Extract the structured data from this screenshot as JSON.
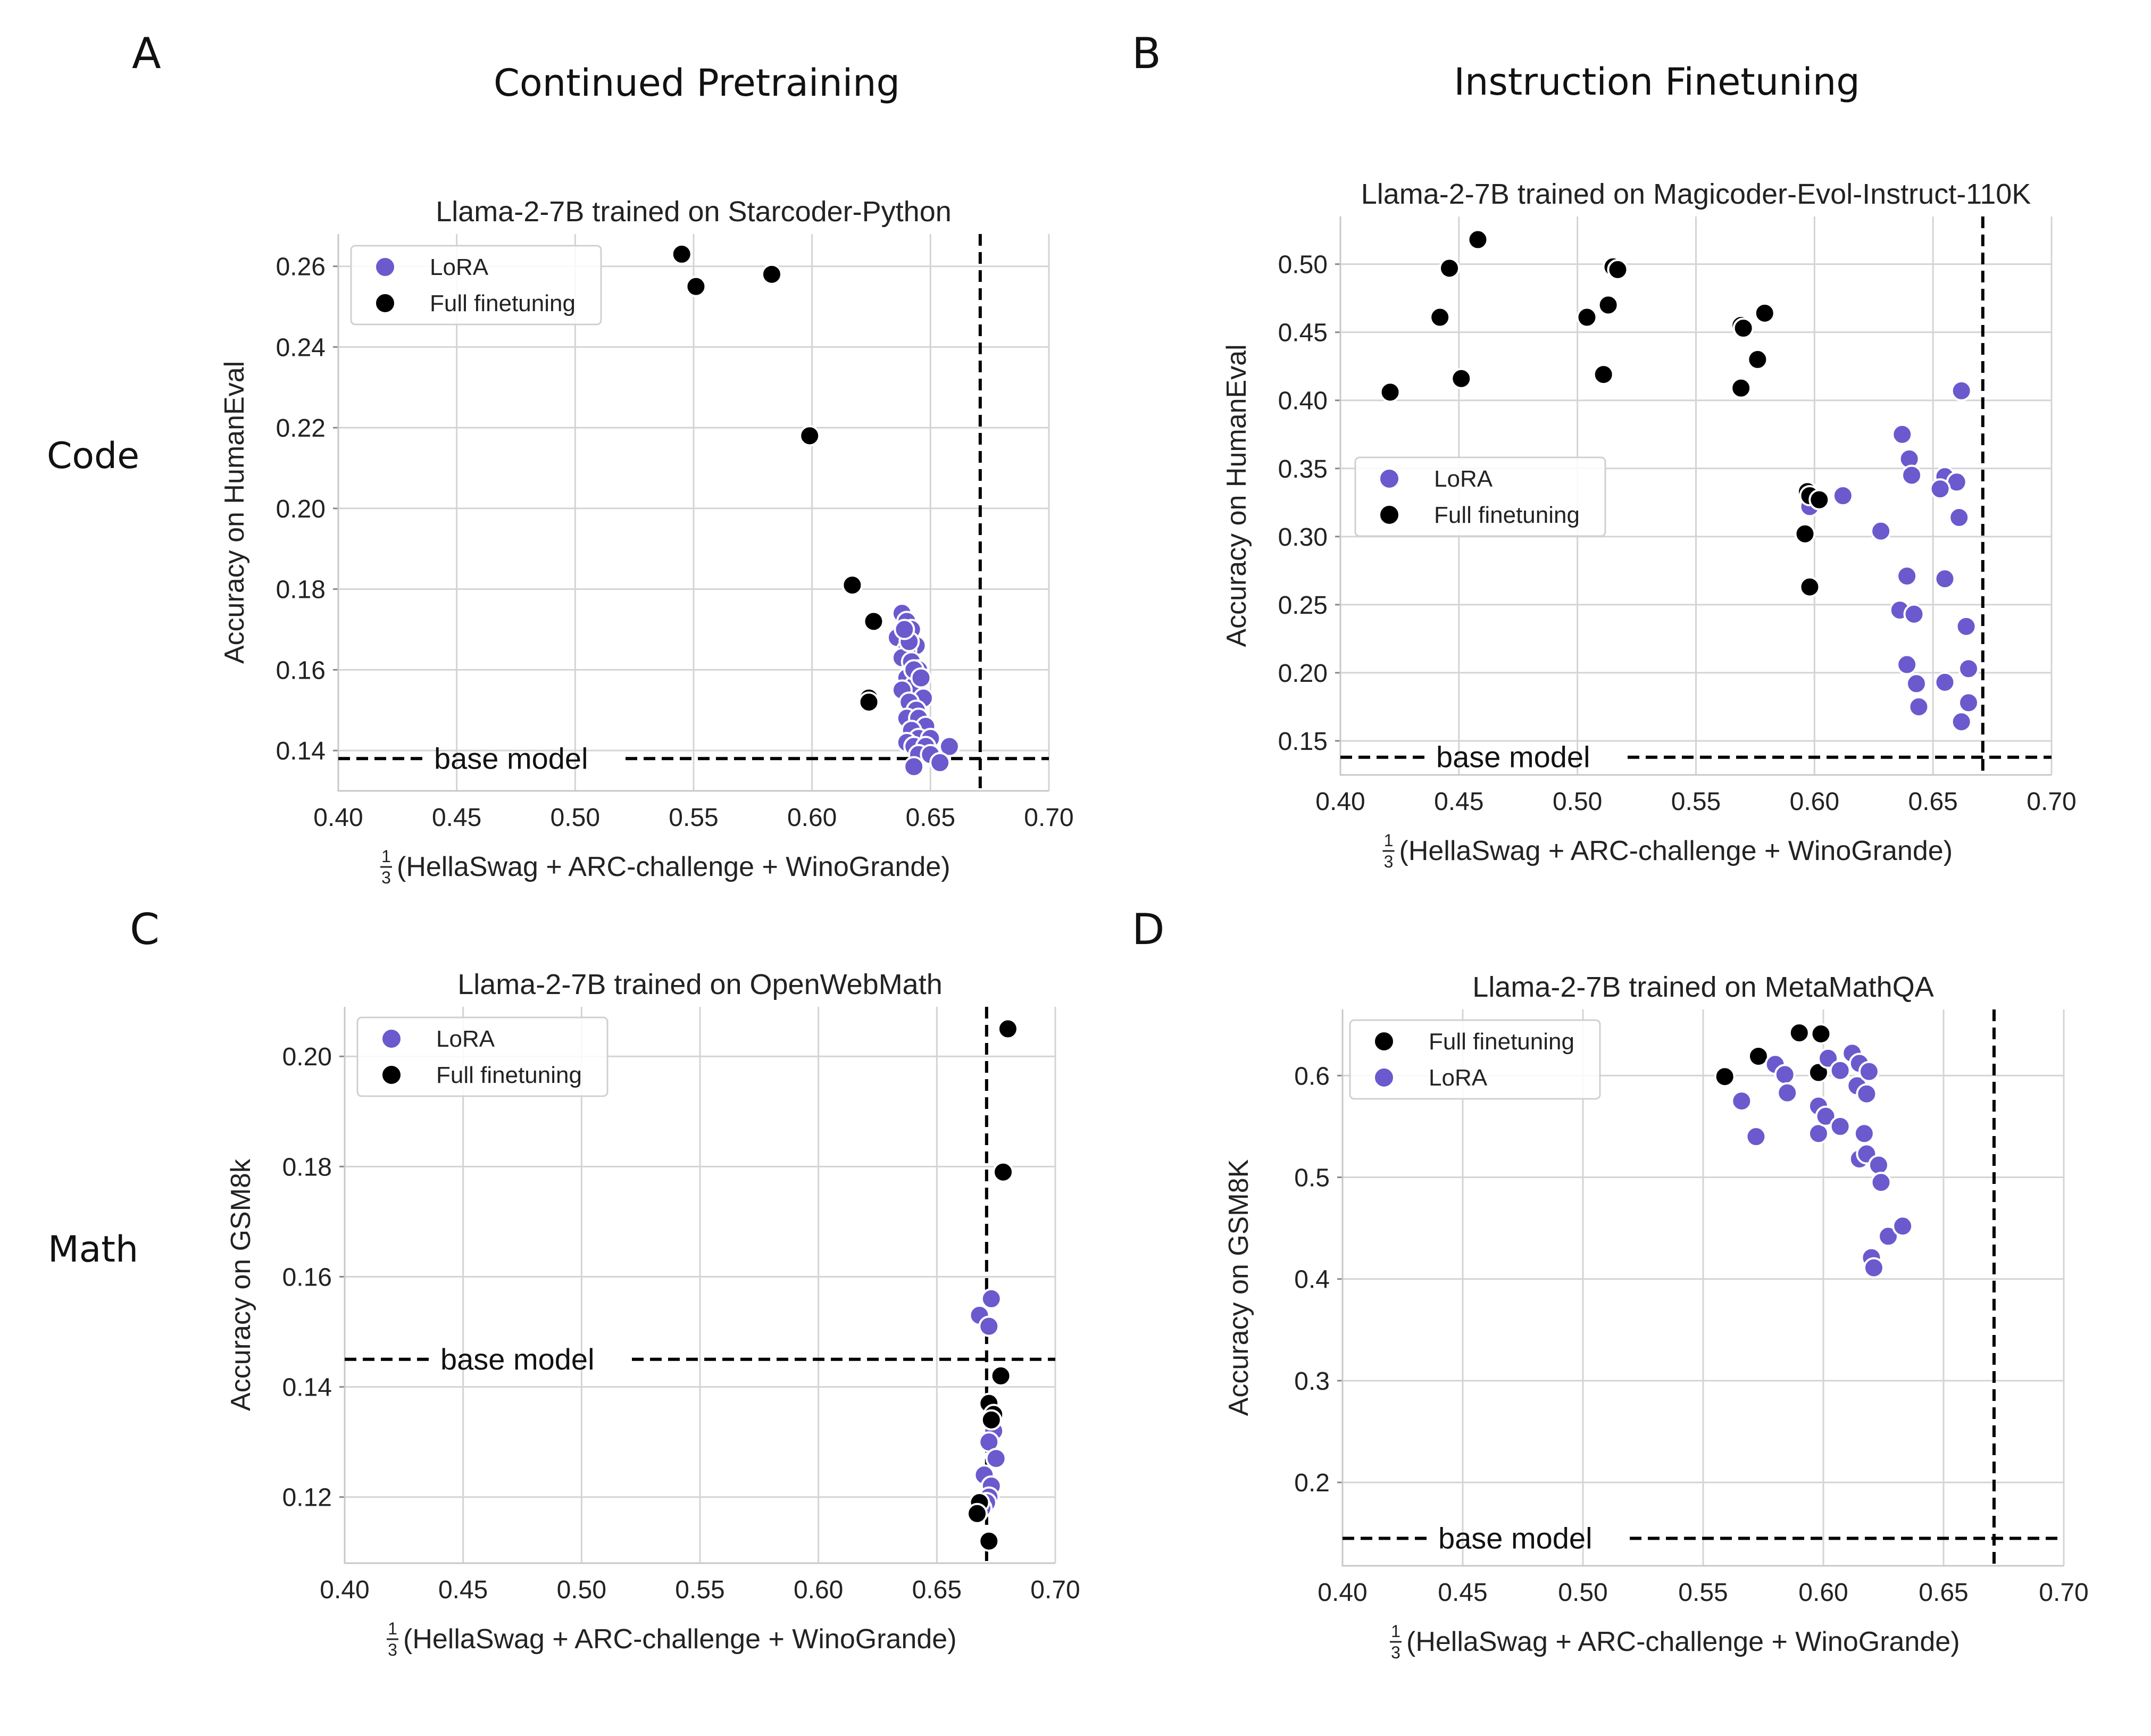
{
  "figure": {
    "panels": [
      "A",
      "B",
      "C",
      "D"
    ],
    "column_titles": [
      "Continued Pretraining",
      "Instruction Finetuning"
    ],
    "row_labels": [
      "Code",
      "Math"
    ]
  },
  "colors": {
    "lora": "#6a5acd",
    "full": "#000000"
  },
  "chart_data": [
    {
      "type": "scatter",
      "title": "Llama-2-7B trained on Starcoder-Python",
      "xlabel_frac": "1/3",
      "xlabel": "(HellaSwag + ARC-challenge + WinoGrande)",
      "ylabel": "Accuracy on HumanEval",
      "xlim": [
        0.4,
        0.7
      ],
      "ylim": [
        0.13,
        0.268
      ],
      "xticks": [
        "0.40",
        "0.45",
        "0.50",
        "0.55",
        "0.60",
        "0.65",
        "0.70"
      ],
      "yticks": [
        "0.14",
        "0.16",
        "0.18",
        "0.20",
        "0.22",
        "0.24",
        "0.26"
      ],
      "grid": true,
      "legend_position": "top-left",
      "legend": [
        "LoRA",
        "Full finetuning"
      ],
      "reference_lines": {
        "baseline_y": 0.138,
        "baseline_label": "base model",
        "vertical_x": 0.671
      },
      "series": [
        {
          "name": "LoRA",
          "color": "#6a5acd",
          "points": [
            [
              0.638,
              0.174
            ],
            [
              0.64,
              0.172
            ],
            [
              0.642,
              0.17
            ],
            [
              0.636,
              0.168
            ],
            [
              0.644,
              0.166
            ],
            [
              0.64,
              0.165
            ],
            [
              0.638,
              0.163
            ],
            [
              0.642,
              0.162
            ],
            [
              0.645,
              0.16
            ],
            [
              0.64,
              0.158
            ],
            [
              0.643,
              0.156
            ],
            [
              0.638,
              0.155
            ],
            [
              0.647,
              0.153
            ],
            [
              0.641,
              0.152
            ],
            [
              0.644,
              0.15
            ],
            [
              0.64,
              0.148
            ],
            [
              0.645,
              0.148
            ],
            [
              0.648,
              0.146
            ],
            [
              0.642,
              0.145
            ],
            [
              0.645,
              0.143
            ],
            [
              0.65,
              0.143
            ],
            [
              0.64,
              0.142
            ],
            [
              0.643,
              0.141
            ],
            [
              0.648,
              0.141
            ],
            [
              0.658,
              0.141
            ],
            [
              0.645,
              0.139
            ],
            [
              0.65,
              0.139
            ],
            [
              0.654,
              0.137
            ],
            [
              0.643,
              0.136
            ],
            [
              0.641,
              0.167
            ],
            [
              0.639,
              0.17
            ],
            [
              0.643,
              0.16
            ],
            [
              0.646,
              0.158
            ]
          ]
        },
        {
          "name": "Full finetuning",
          "color": "#000000",
          "points": [
            [
              0.545,
              0.263
            ],
            [
              0.551,
              0.255
            ],
            [
              0.583,
              0.258
            ],
            [
              0.599,
              0.218
            ],
            [
              0.617,
              0.181
            ],
            [
              0.626,
              0.172
            ],
            [
              0.624,
              0.153
            ],
            [
              0.624,
              0.152
            ]
          ]
        }
      ]
    },
    {
      "type": "scatter",
      "title": "Llama-2-7B trained on Magicoder-Evol-Instruct-110K",
      "xlabel_frac": "1/3",
      "xlabel": "(HellaSwag + ARC-challenge + WinoGrande)",
      "ylabel": "Accuracy on HumanEval",
      "xlim": [
        0.4,
        0.7
      ],
      "ylim": [
        0.125,
        0.535
      ],
      "xticks": [
        "0.40",
        "0.45",
        "0.50",
        "0.55",
        "0.60",
        "0.65",
        "0.70"
      ],
      "yticks": [
        "0.15",
        "0.20",
        "0.25",
        "0.30",
        "0.35",
        "0.40",
        "0.45",
        "0.50"
      ],
      "grid": true,
      "legend_position": "center-left",
      "legend": [
        "LoRA",
        "Full finetuning"
      ],
      "reference_lines": {
        "baseline_y": 0.138,
        "baseline_label": "base model",
        "vertical_x": 0.671
      },
      "series": [
        {
          "name": "LoRA",
          "color": "#6a5acd",
          "points": [
            [
              0.662,
              0.407
            ],
            [
              0.637,
              0.375
            ],
            [
              0.64,
              0.357
            ],
            [
              0.641,
              0.345
            ],
            [
              0.655,
              0.344
            ],
            [
              0.66,
              0.34
            ],
            [
              0.653,
              0.335
            ],
            [
              0.612,
              0.33
            ],
            [
              0.598,
              0.322
            ],
            [
              0.661,
              0.314
            ],
            [
              0.628,
              0.304
            ],
            [
              0.639,
              0.271
            ],
            [
              0.655,
              0.269
            ],
            [
              0.636,
              0.246
            ],
            [
              0.642,
              0.243
            ],
            [
              0.664,
              0.234
            ],
            [
              0.639,
              0.206
            ],
            [
              0.665,
              0.203
            ],
            [
              0.655,
              0.193
            ],
            [
              0.643,
              0.192
            ],
            [
              0.665,
              0.178
            ],
            [
              0.644,
              0.175
            ],
            [
              0.662,
              0.164
            ]
          ]
        },
        {
          "name": "Full finetuning",
          "color": "#000000",
          "points": [
            [
              0.421,
              0.406
            ],
            [
              0.442,
              0.461
            ],
            [
              0.446,
              0.497
            ],
            [
              0.451,
              0.416
            ],
            [
              0.458,
              0.518
            ],
            [
              0.504,
              0.461
            ],
            [
              0.511,
              0.419
            ],
            [
              0.513,
              0.47
            ],
            [
              0.515,
              0.498
            ],
            [
              0.517,
              0.496
            ],
            [
              0.569,
              0.455
            ],
            [
              0.57,
              0.453
            ],
            [
              0.569,
              0.409
            ],
            [
              0.576,
              0.43
            ],
            [
              0.579,
              0.464
            ],
            [
              0.597,
              0.333
            ],
            [
              0.598,
              0.33
            ],
            [
              0.602,
              0.327
            ],
            [
              0.596,
              0.302
            ],
            [
              0.598,
              0.263
            ]
          ]
        }
      ]
    },
    {
      "type": "scatter",
      "title": "Llama-2-7B trained on OpenWebMath",
      "xlabel_frac": "1/3",
      "xlabel": "(HellaSwag + ARC-challenge + WinoGrande)",
      "ylabel": "Accuracy on GSM8k",
      "xlim": [
        0.4,
        0.7
      ],
      "ylim": [
        0.108,
        0.209
      ],
      "xticks": [
        "0.40",
        "0.45",
        "0.50",
        "0.55",
        "0.60",
        "0.65",
        "0.70"
      ],
      "yticks": [
        "0.12",
        "0.14",
        "0.16",
        "0.18",
        "0.20"
      ],
      "grid": true,
      "legend_position": "top-left",
      "legend": [
        "LoRA",
        "Full finetuning"
      ],
      "reference_lines": {
        "baseline_y": 0.145,
        "baseline_label": "base model",
        "vertical_x": 0.671
      },
      "series": [
        {
          "name": "LoRA",
          "color": "#6a5acd",
          "points": [
            [
              0.673,
              0.156
            ],
            [
              0.668,
              0.153
            ],
            [
              0.672,
              0.151
            ],
            [
              0.674,
              0.132
            ],
            [
              0.672,
              0.13
            ],
            [
              0.675,
              0.127
            ],
            [
              0.67,
              0.124
            ],
            [
              0.673,
              0.122
            ],
            [
              0.672,
              0.12
            ],
            [
              0.671,
              0.119
            ],
            [
              0.669,
              0.118
            ]
          ]
        },
        {
          "name": "Full finetuning",
          "color": "#000000",
          "points": [
            [
              0.68,
              0.205
            ],
            [
              0.678,
              0.179
            ],
            [
              0.677,
              0.142
            ],
            [
              0.672,
              0.137
            ],
            [
              0.674,
              0.135
            ],
            [
              0.673,
              0.134
            ],
            [
              0.668,
              0.119
            ],
            [
              0.667,
              0.117
            ],
            [
              0.672,
              0.112
            ]
          ]
        }
      ]
    },
    {
      "type": "scatter",
      "title": "Llama-2-7B trained on MetaMathQA",
      "xlabel_frac": "1/3",
      "xlabel": "(HellaSwag + ARC-challenge + WinoGrande)",
      "ylabel": "Accuracy on GSM8K",
      "xlim": [
        0.4,
        0.7
      ],
      "ylim": [
        0.118,
        0.665
      ],
      "xticks": [
        "0.40",
        "0.45",
        "0.50",
        "0.55",
        "0.60",
        "0.65",
        "0.70"
      ],
      "yticks": [
        "0.2",
        "0.3",
        "0.4",
        "0.5",
        "0.6"
      ],
      "grid": true,
      "legend_position": "top-left",
      "legend": [
        "Full finetuning",
        "LoRA"
      ],
      "reference_lines": {
        "baseline_y": 0.145,
        "baseline_label": "base model",
        "vertical_x": 0.671
      },
      "series": [
        {
          "name": "Full finetuning",
          "color": "#000000",
          "points": [
            [
              0.559,
              0.599
            ],
            [
              0.573,
              0.619
            ],
            [
              0.59,
              0.642
            ],
            [
              0.598,
              0.603
            ],
            [
              0.599,
              0.641
            ]
          ]
        },
        {
          "name": "LoRA",
          "color": "#6a5acd",
          "points": [
            [
              0.566,
              0.575
            ],
            [
              0.572,
              0.54
            ],
            [
              0.58,
              0.611
            ],
            [
              0.584,
              0.601
            ],
            [
              0.585,
              0.583
            ],
            [
              0.598,
              0.57
            ],
            [
              0.598,
              0.543
            ],
            [
              0.601,
              0.56
            ],
            [
              0.602,
              0.617
            ],
            [
              0.607,
              0.605
            ],
            [
              0.607,
              0.55
            ],
            [
              0.612,
              0.622
            ],
            [
              0.614,
              0.59
            ],
            [
              0.615,
              0.612
            ],
            [
              0.615,
              0.518
            ],
            [
              0.617,
              0.543
            ],
            [
              0.618,
              0.523
            ],
            [
              0.618,
              0.582
            ],
            [
              0.619,
              0.604
            ],
            [
              0.62,
              0.421
            ],
            [
              0.621,
              0.411
            ],
            [
              0.623,
              0.512
            ],
            [
              0.624,
              0.495
            ],
            [
              0.627,
              0.442
            ],
            [
              0.633,
              0.452
            ]
          ]
        }
      ]
    }
  ]
}
